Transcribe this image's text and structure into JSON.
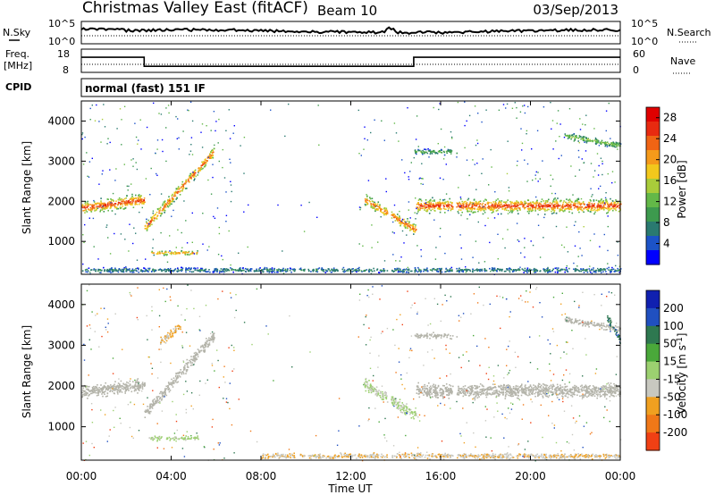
{
  "header": {
    "station": "Christmas Valley East (fitACF)",
    "beam": "Beam 10",
    "date": "03/Sep/2013"
  },
  "noise_panel": {
    "left_label": "N.Sky",
    "right_label": "N.Search",
    "left_ticks": [
      "10^5",
      "10^0"
    ],
    "right_ticks": [
      "10^5",
      "10^0"
    ]
  },
  "freq_panel": {
    "left_label_line1": "Freq.",
    "left_label_line2": "[MHz]",
    "right_label": "Nave",
    "left_ticks": [
      "18",
      "8"
    ],
    "right_ticks": [
      "60",
      "0"
    ]
  },
  "cpid": {
    "label": "CPID",
    "mode": "normal (fast) 151 IF"
  },
  "time_axis": {
    "title": "Time UT",
    "ticks": [
      "00:00",
      "04:00",
      "08:00",
      "12:00",
      "16:00",
      "20:00",
      "00:00"
    ]
  },
  "colors": {
    "power_scale": [
      "#0000ff",
      "#1c53c8",
      "#2a7a70",
      "#3d9a4e",
      "#63b848",
      "#a9cc3a",
      "#f2c81c",
      "#f59a1a",
      "#f06414",
      "#e82a10",
      "#e00000"
    ],
    "velocity_scale": [
      "#1020b0",
      "#2050c0",
      "#2e7850",
      "#4aa83a",
      "#9cd070",
      "#c8c8c0",
      "#c8c8c0",
      "#f0a020",
      "#f07818",
      "#f04014",
      "#e00000"
    ],
    "ground_scatter": "#b4b4aa"
  },
  "chart_data": [
    {
      "type": "heatmap",
      "name": "power",
      "ylabel": "Slant Range [km]",
      "xlabel": "Time UT",
      "xlim_hours": [
        0,
        24
      ],
      "ylim_km": [
        180,
        4500
      ],
      "y_ticks": [
        "1000",
        "2000",
        "3000",
        "4000"
      ],
      "colorbar": {
        "label": "Power [dB]",
        "ticks": [
          "28",
          "24",
          "20",
          "16",
          "12",
          "8",
          "4"
        ],
        "range": [
          0,
          30
        ]
      },
      "features": [
        {
          "t_start": 0.0,
          "t_end": 2.8,
          "range_center": [
            1850,
            2050
          ],
          "thickness": 420,
          "peak_db": 26
        },
        {
          "t_start": 2.8,
          "t_end": 5.9,
          "range_center": [
            1350,
            3250
          ],
          "thickness": 380,
          "peak_db": 24
        },
        {
          "t_start": 3.0,
          "t_end": 5.2,
          "range_center": [
            730,
            730
          ],
          "thickness": 140,
          "peak_db": 22
        },
        {
          "t_start": 12.6,
          "t_end": 14.9,
          "range_center": [
            2050,
            1300
          ],
          "thickness": 380,
          "peak_db": 24
        },
        {
          "t_start": 14.9,
          "t_end": 24.0,
          "range_center": [
            1900,
            1900
          ],
          "thickness": 460,
          "peak_db": 26
        },
        {
          "t_start": 14.8,
          "t_end": 16.7,
          "range_center": [
            3250,
            3250
          ],
          "thickness": 180,
          "peak_db": 12
        },
        {
          "t_start": 21.5,
          "t_end": 24.0,
          "range_center": [
            3650,
            3400
          ],
          "thickness": 220,
          "peak_db": 14
        },
        {
          "t_start": 0.0,
          "t_end": 24.0,
          "range_center": [
            300,
            300
          ],
          "thickness": 160,
          "peak_db": 8
        }
      ],
      "gaps_hours": [
        9.6,
        10.0,
        13.7,
        16.6
      ]
    },
    {
      "type": "heatmap",
      "name": "velocity",
      "ylabel": "Slant Range [km]",
      "xlabel": "Time UT",
      "xlim_hours": [
        0,
        24
      ],
      "ylim_km": [
        180,
        4500
      ],
      "y_ticks": [
        "1000",
        "2000",
        "3000",
        "4000"
      ],
      "colorbar": {
        "label": "Velocity [m s^-1]",
        "ticks": [
          "200",
          "100",
          "50",
          "15",
          "-15",
          "-50",
          "-100",
          "-200"
        ],
        "range": [
          -250,
          250
        ]
      },
      "features": [
        {
          "t_start": 0.0,
          "t_end": 2.8,
          "range_center": [
            1850,
            2050
          ],
          "thickness": 420,
          "velocity": 0,
          "ground_scatter": true
        },
        {
          "t_start": 2.8,
          "t_end": 5.9,
          "range_center": [
            1350,
            3250
          ],
          "thickness": 380,
          "velocity": 0,
          "ground_scatter": true
        },
        {
          "t_start": 3.5,
          "t_end": 4.4,
          "range_center": [
            3100,
            3500
          ],
          "thickness": 300,
          "velocity": -80
        },
        {
          "t_start": 3.0,
          "t_end": 5.2,
          "range_center": [
            730,
            730
          ],
          "thickness": 140,
          "velocity": 30
        },
        {
          "t_start": 12.6,
          "t_end": 14.9,
          "range_center": [
            2050,
            1300
          ],
          "thickness": 380,
          "velocity": 25
        },
        {
          "t_start": 14.9,
          "t_end": 24.0,
          "range_center": [
            1900,
            1900
          ],
          "thickness": 460,
          "velocity": 0,
          "ground_scatter": true
        },
        {
          "t_start": 14.8,
          "t_end": 16.7,
          "range_center": [
            3250,
            3250
          ],
          "thickness": 180,
          "velocity": 0,
          "ground_scatter": true
        },
        {
          "t_start": 21.5,
          "t_end": 24.0,
          "range_center": [
            3650,
            3400
          ],
          "thickness": 220,
          "velocity": 0,
          "ground_scatter": true
        },
        {
          "t_start": 23.4,
          "t_end": 24.0,
          "range_center": [
            3700,
            3100
          ],
          "thickness": 250,
          "velocity": 150
        },
        {
          "t_start": 8.0,
          "t_end": 24.0,
          "range_center": [
            300,
            300
          ],
          "thickness": 180,
          "velocity": -60
        }
      ],
      "gaps_hours": [
        9.6,
        10.0,
        13.7,
        16.6
      ]
    }
  ]
}
